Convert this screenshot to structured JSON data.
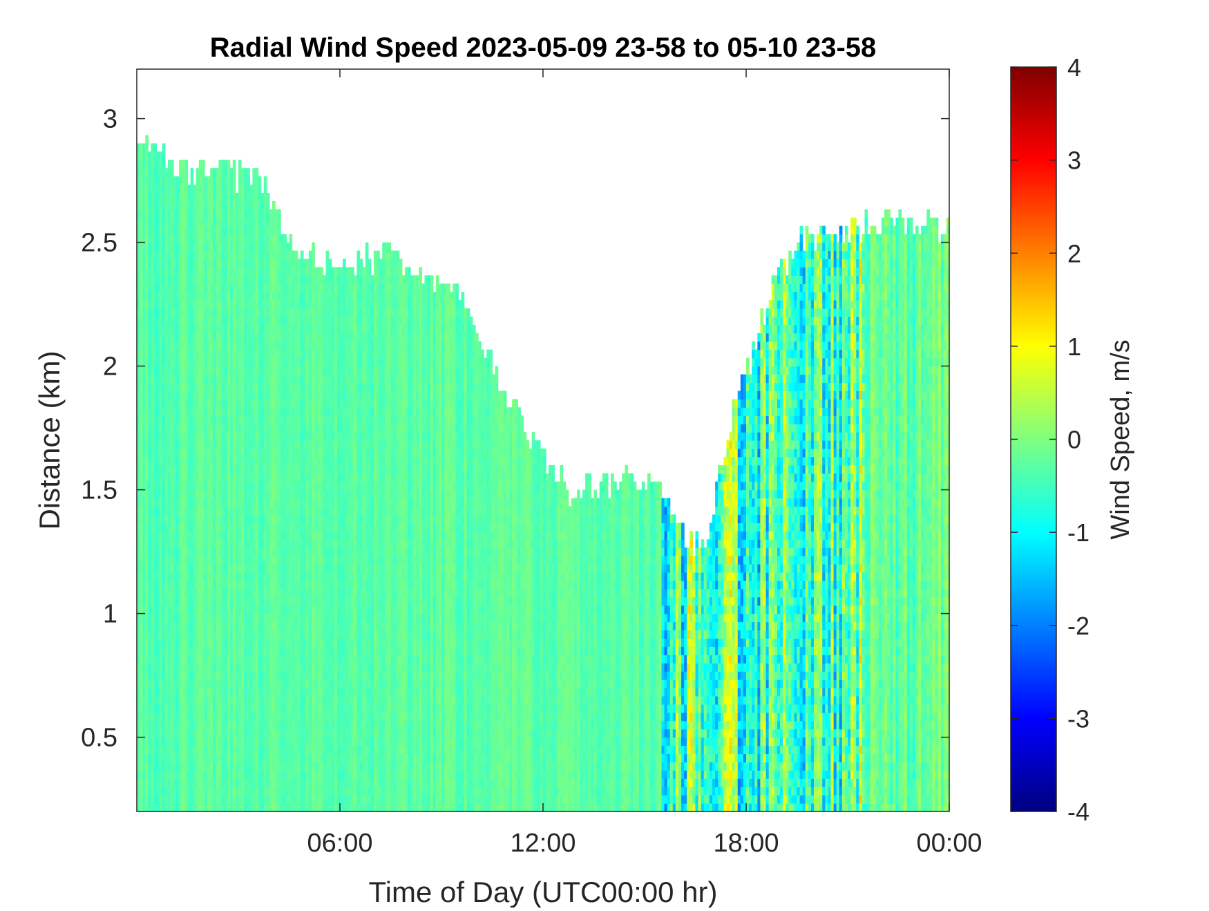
{
  "chart_data": {
    "type": "heatmap",
    "title": "Radial Wind Speed 2023-05-09 23-58 to 05-10 23-58",
    "xlabel": "Time of Day (UTC00:00 hr)",
    "ylabel": "Distance (km)",
    "xlim_hours": [
      0,
      24
    ],
    "ylim": [
      0.2,
      3.2
    ],
    "xticks": [
      {
        "hour": 6,
        "label": "06:00"
      },
      {
        "hour": 12,
        "label": "12:00"
      },
      {
        "hour": 18,
        "label": "18:00"
      },
      {
        "hour": 24,
        "label": "00:00"
      }
    ],
    "yticks": [
      {
        "value": 0.5,
        "label": "0.5"
      },
      {
        "value": 1,
        "label": "1"
      },
      {
        "value": 1.5,
        "label": "1.5"
      },
      {
        "value": 2,
        "label": "2"
      },
      {
        "value": 2.5,
        "label": "2.5"
      },
      {
        "value": 3,
        "label": "3"
      }
    ],
    "colorbar": {
      "label": "Wind Speed, m/s",
      "colormap": "jet",
      "range": [
        -4,
        4
      ],
      "ticks": [
        "4",
        "3",
        "2",
        "1",
        "0",
        "-1",
        "-2",
        "-3",
        "-4"
      ],
      "tick_values": [
        4,
        3,
        2,
        1,
        0,
        -1,
        -2,
        -3,
        -4
      ]
    },
    "data_top_km": [
      {
        "hour": 0.0,
        "km": 2.9
      },
      {
        "hour": 0.7,
        "km": 2.85
      },
      {
        "hour": 1.2,
        "km": 2.8
      },
      {
        "hour": 3.8,
        "km": 2.75
      },
      {
        "hour": 4.8,
        "km": 2.45
      },
      {
        "hour": 5.8,
        "km": 2.4
      },
      {
        "hour": 7.5,
        "km": 2.45
      },
      {
        "hour": 9.5,
        "km": 2.3
      },
      {
        "hour": 10.6,
        "km": 2.0
      },
      {
        "hour": 11.6,
        "km": 1.7
      },
      {
        "hour": 12.8,
        "km": 1.5
      },
      {
        "hour": 14.5,
        "km": 1.55
      },
      {
        "hour": 15.6,
        "km": 1.5
      },
      {
        "hour": 16.3,
        "km": 1.3
      },
      {
        "hour": 16.8,
        "km": 1.25
      },
      {
        "hour": 17.2,
        "km": 1.6
      },
      {
        "hour": 17.6,
        "km": 1.8
      },
      {
        "hour": 18.3,
        "km": 2.1
      },
      {
        "hour": 18.7,
        "km": 2.3
      },
      {
        "hour": 19.5,
        "km": 2.5
      },
      {
        "hour": 21.0,
        "km": 2.55
      },
      {
        "hour": 22.5,
        "km": 2.6
      },
      {
        "hour": 24.0,
        "km": 2.55
      }
    ],
    "regimes": [
      {
        "hours": [
          0,
          15.5
        ],
        "typical_speed": -0.3,
        "spread": 0.4
      },
      {
        "hours": [
          15.5,
          21.5
        ],
        "typical_speed": -0.4,
        "spread": 2.4
      },
      {
        "hours": [
          21.5,
          24
        ],
        "typical_speed": -0.2,
        "spread": 0.8
      }
    ]
  }
}
